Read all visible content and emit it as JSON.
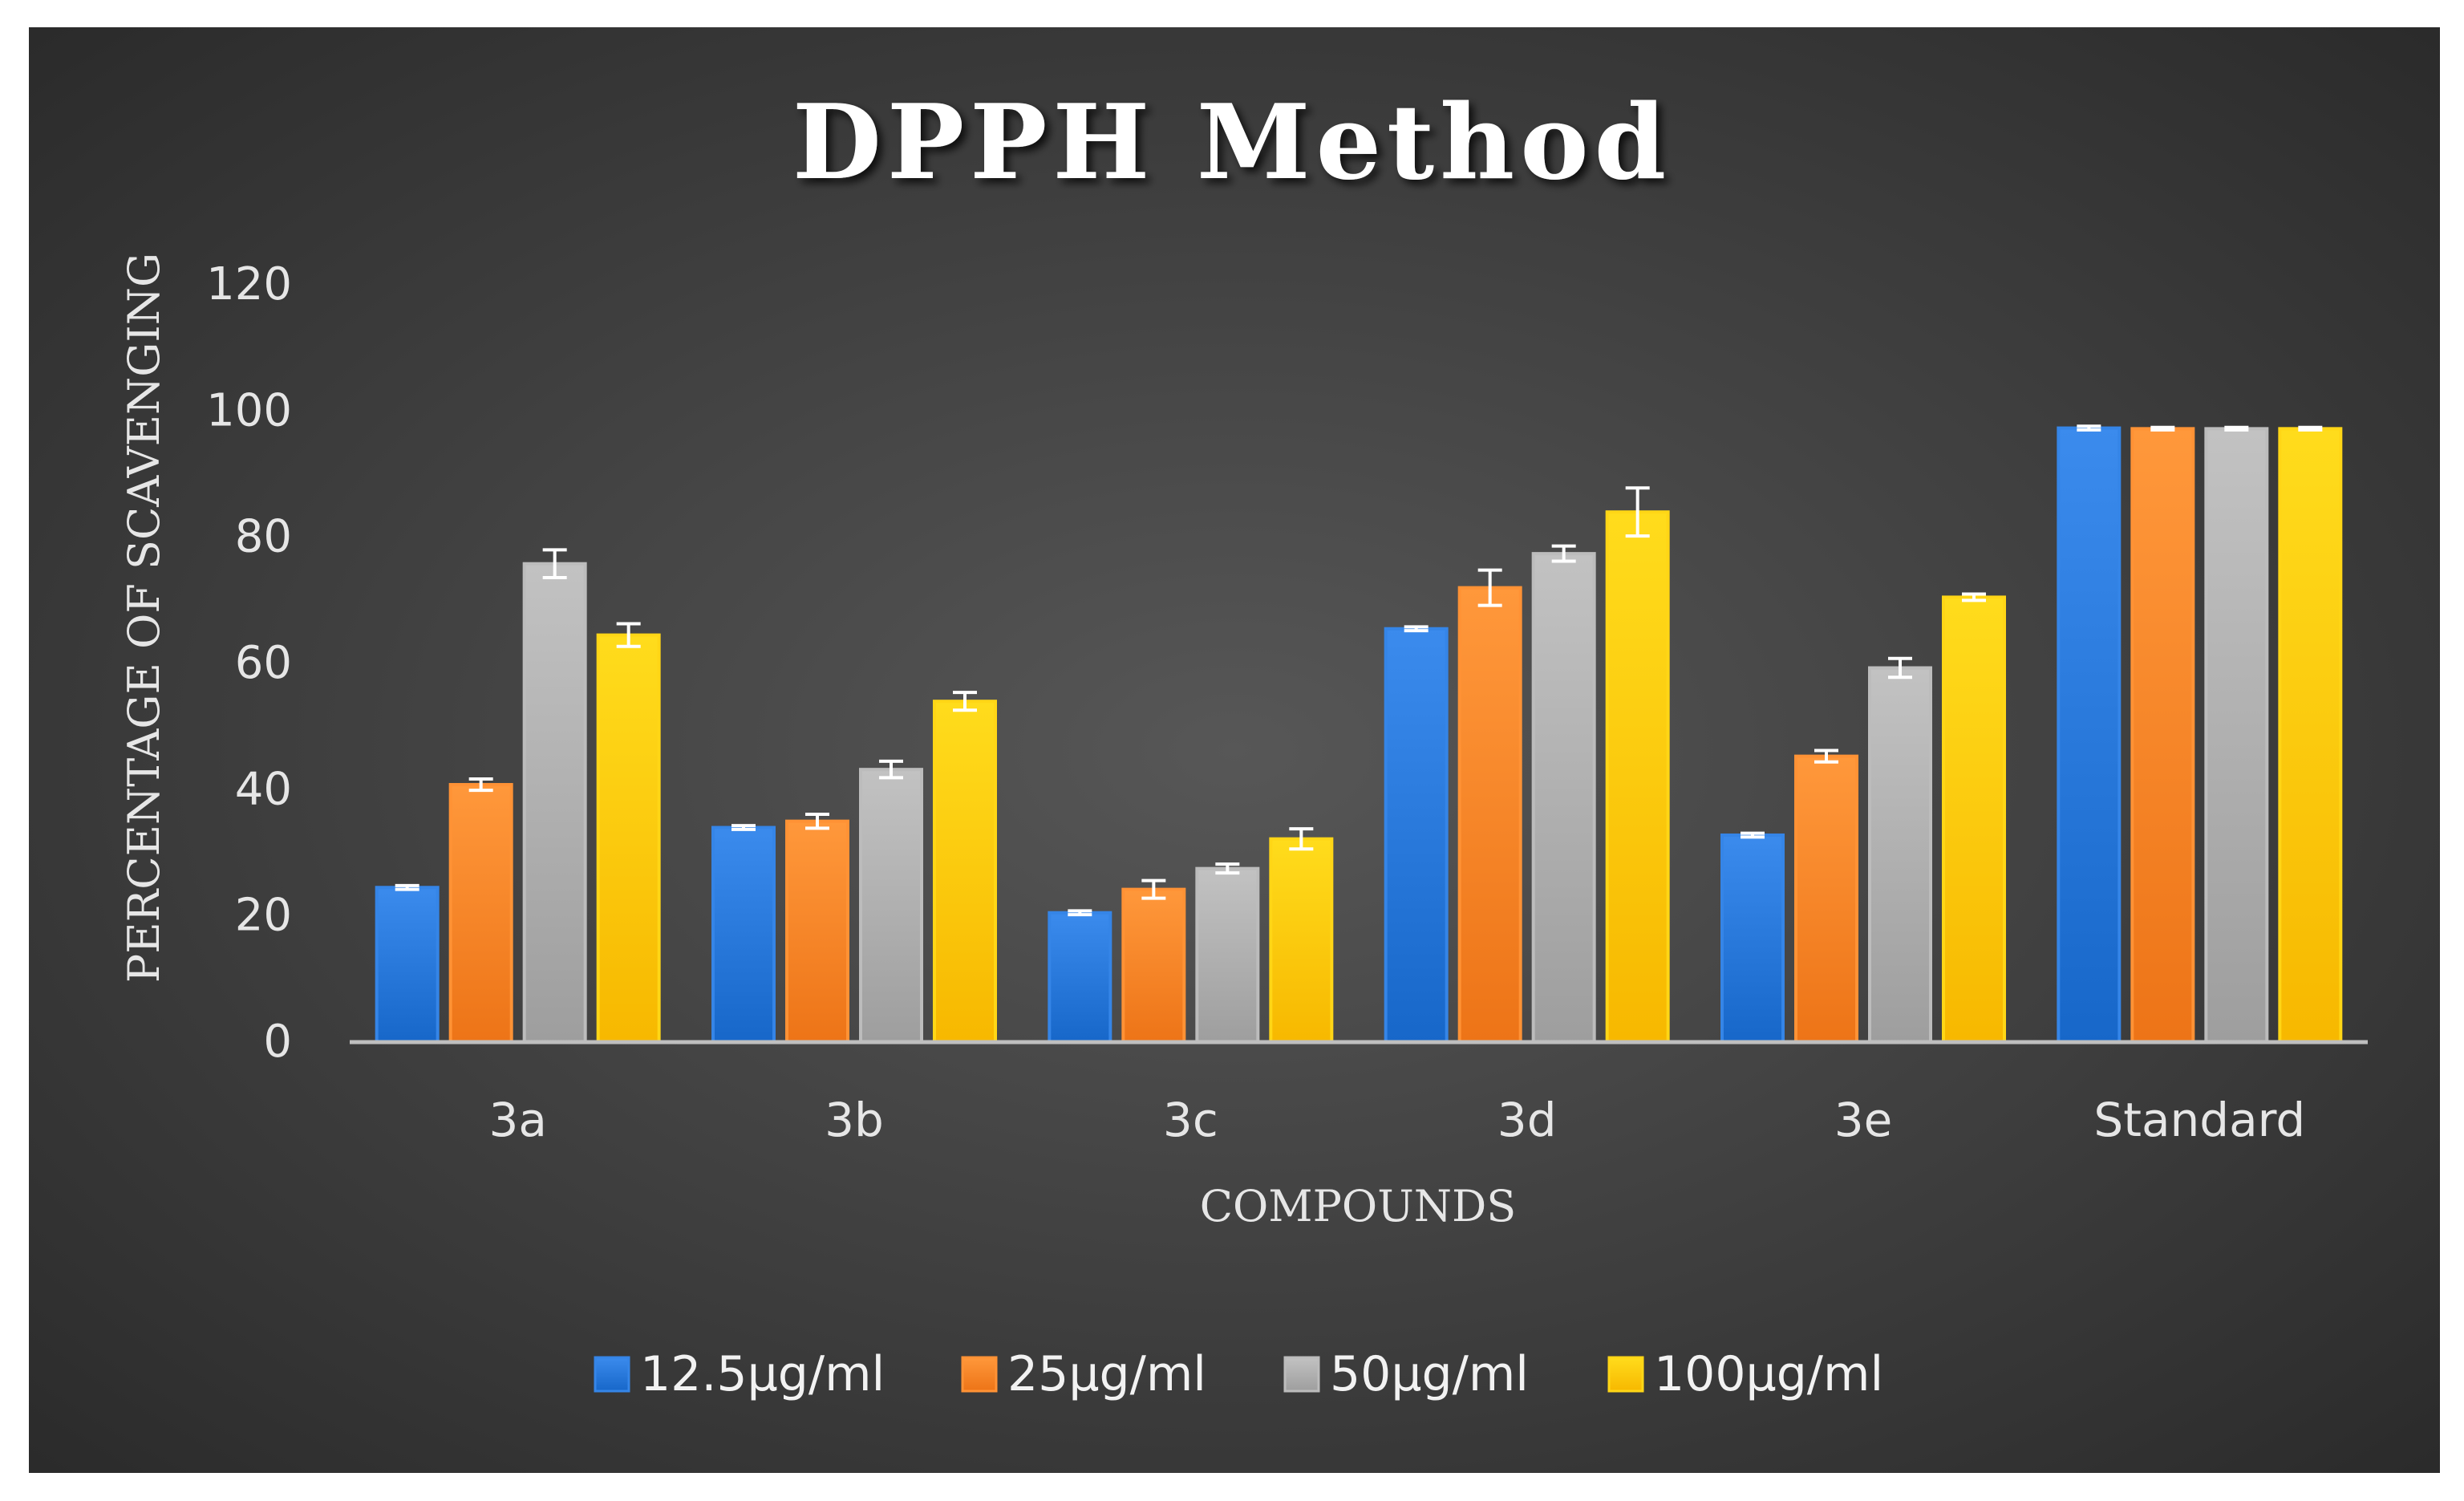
{
  "chart_data": {
    "type": "bar",
    "title": "DPPH Method",
    "xlabel": "COMPOUNDS",
    "ylabel": "PERCENTAGE OF  SCAVENGING",
    "ylim": [
      0,
      120
    ],
    "yticks": [
      0,
      20,
      40,
      60,
      80,
      100,
      120
    ],
    "grid": false,
    "legend_position": "bottom",
    "categories": [
      "3a",
      "3b",
      "3c",
      "3d",
      "3e",
      "Standard"
    ],
    "series": [
      {
        "name": "12.5µg/ml",
        "color": "#1f6fd1",
        "values": [
          24.5,
          34,
          20.5,
          65.5,
          32.8,
          97.3
        ],
        "errors": [
          0.3,
          0.3,
          0.3,
          0.3,
          0.3,
          0.3
        ]
      },
      {
        "name": "25µg/ml",
        "color": "#f57c1f",
        "values": [
          40.8,
          35,
          24.2,
          72,
          45.3,
          97.2
        ],
        "errors": [
          0.9,
          1.1,
          1.4,
          2.8,
          0.9,
          0.2
        ]
      },
      {
        "name": "50µg/ml",
        "color": "#a6a6a6",
        "values": [
          75.8,
          43.2,
          27.5,
          77.4,
          59.3,
          97.2
        ],
        "errors": [
          2.2,
          1.3,
          0.7,
          1.2,
          1.5,
          0.2
        ]
      },
      {
        "name": "100µg/ml",
        "color": "#ffc000",
        "values": [
          64.5,
          54,
          32.2,
          84,
          70.5,
          97.2
        ],
        "errors": [
          1.8,
          1.4,
          1.6,
          3.8,
          0.5,
          0.2
        ]
      }
    ]
  }
}
